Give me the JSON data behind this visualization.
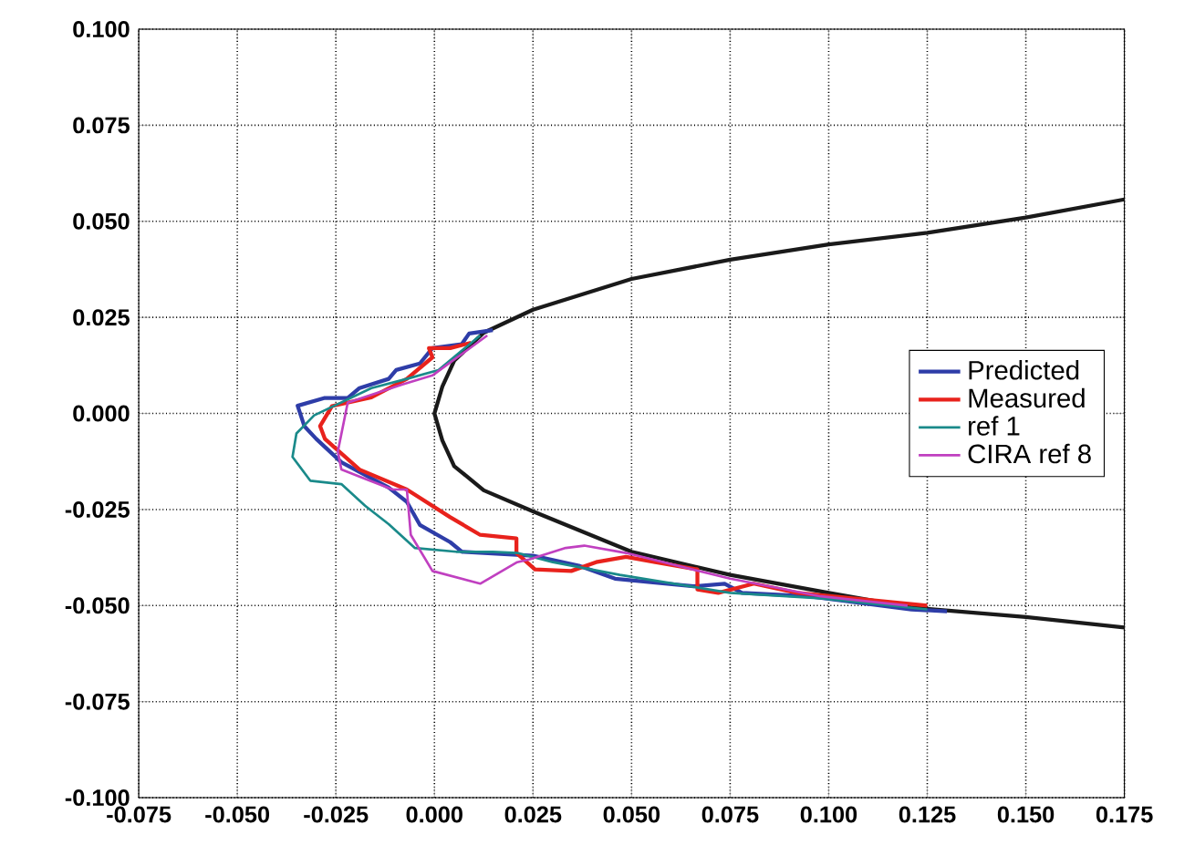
{
  "chart_data": {
    "type": "line",
    "xlim": [
      -0.075,
      0.175
    ],
    "ylim": [
      -0.1,
      0.1
    ],
    "xticks": [
      {
        "value": -0.075,
        "label": "-0.075"
      },
      {
        "value": -0.05,
        "label": "-0.050"
      },
      {
        "value": -0.025,
        "label": "-0.025"
      },
      {
        "value": 0,
        "label": "0.000"
      },
      {
        "value": 0.025,
        "label": "0.025"
      },
      {
        "value": 0.05,
        "label": "0.050"
      },
      {
        "value": 0.075,
        "label": "0.075"
      },
      {
        "value": 0.1,
        "label": "0.100"
      },
      {
        "value": 0.125,
        "label": "0.125"
      },
      {
        "value": 0.15,
        "label": "0.150"
      },
      {
        "value": 0.175,
        "label": "0.175"
      }
    ],
    "yticks": [
      {
        "value": -0.1,
        "label": "-0.100"
      },
      {
        "value": -0.075,
        "label": "-0.075"
      },
      {
        "value": -0.05,
        "label": "-0.050"
      },
      {
        "value": -0.025,
        "label": "-0.025"
      },
      {
        "value": 0,
        "label": "0.000"
      },
      {
        "value": 0.025,
        "label": "0.025"
      },
      {
        "value": 0.05,
        "label": "0.050"
      },
      {
        "value": 0.075,
        "label": "0.075"
      },
      {
        "value": 0.1,
        "label": "0.100"
      }
    ],
    "grid": true,
    "legend": "right",
    "marker": "none",
    "line_style": "solid",
    "series": [
      {
        "color": "#1a1a1a",
        "x": [
          0.175,
          0.15,
          0.125,
          0.1,
          0.075,
          0.05,
          0.025,
          0.0125,
          0.005,
          0.002,
          0,
          0.002,
          0.005,
          0.0125,
          0.025,
          0.05,
          0.075,
          0.1,
          0.121,
          0.15,
          0.175
        ],
        "values": [
          0.0557,
          0.051,
          0.047,
          0.044,
          0.04,
          0.035,
          0.027,
          0.021,
          0.0137,
          0.007,
          0,
          -0.007,
          -0.0137,
          -0.02,
          -0.0255,
          -0.036,
          -0.042,
          -0.0467,
          -0.0505,
          -0.053,
          -0.0557
        ]
      },
      {
        "name": "Predicted",
        "color": "#2e3da8",
        "x": [
          0.0148,
          0.0088,
          0.0069,
          -0.0005,
          -0.0037,
          -0.0097,
          -0.0116,
          -0.019,
          -0.022,
          -0.028,
          -0.0347,
          -0.033,
          -0.03,
          -0.0236,
          -0.0176,
          -0.0116,
          -0.007,
          -0.0037,
          0.004,
          0.007,
          0.025,
          0.0366,
          0.0458,
          0.0657,
          0.0736,
          0.078,
          0.095,
          0.121,
          0.13
        ],
        "values": [
          0.0217,
          0.0208,
          0.018,
          0.017,
          0.013,
          0.0113,
          0.009,
          0.0066,
          0.004,
          0.004,
          0.002,
          -0.0033,
          -0.0066,
          -0.0127,
          -0.016,
          -0.0193,
          -0.023,
          -0.029,
          -0.0335,
          -0.036,
          -0.037,
          -0.0396,
          -0.043,
          -0.045,
          -0.0443,
          -0.0467,
          -0.0476,
          -0.051,
          -0.0515
        ]
      },
      {
        "name": "Measured",
        "color": "#e8221c",
        "x": [
          0.0093,
          0.004,
          -0.0014,
          -0.0005,
          -0.007,
          -0.016,
          -0.026,
          -0.029,
          -0.0278,
          -0.019,
          -0.007,
          0.004,
          0.0116,
          0.0208,
          0.0208,
          0.0255,
          0.0347,
          0.041,
          0.0486,
          0.056,
          0.0667,
          0.0667,
          0.072,
          0.081,
          0.092,
          0.125
        ],
        "values": [
          0.0184,
          0.017,
          0.017,
          0.0146,
          0.009,
          0.0042,
          0.0019,
          -0.0033,
          -0.0066,
          -0.0146,
          -0.0198,
          -0.027,
          -0.0316,
          -0.0325,
          -0.0363,
          -0.0406,
          -0.041,
          -0.0387,
          -0.0373,
          -0.0387,
          -0.0406,
          -0.0458,
          -0.0467,
          -0.0443,
          -0.0467,
          -0.05
        ]
      },
      {
        "name": "ref 1",
        "color": "#1a8a8a",
        "x": [
          0.0116,
          0.001,
          -0.007,
          -0.016,
          -0.0305,
          -0.035,
          -0.036,
          -0.0315,
          -0.0236,
          -0.0176,
          -0.0116,
          -0.005,
          0.0055,
          0.0148,
          0.021,
          0.03,
          0.047,
          0.075,
          0.098,
          0.125
        ],
        "values": [
          0.0203,
          0.0113,
          0.009,
          0.0066,
          -0.0005,
          -0.0052,
          -0.0113,
          -0.0175,
          -0.0184,
          -0.024,
          -0.0288,
          -0.035,
          -0.036,
          -0.036,
          -0.0363,
          -0.0387,
          -0.042,
          -0.0467,
          -0.0481,
          -0.051
        ]
      },
      {
        "name": "CIRA ref 8",
        "color": "#c040c0",
        "x": [
          0.0134,
          -0.0005,
          -0.0083,
          -0.022,
          -0.0245,
          -0.0236,
          -0.0176,
          -0.0106,
          -0.007,
          -0.006,
          -0.0005,
          0.0116,
          0.021,
          0.024,
          0.0333,
          0.038,
          0.0486,
          0.075,
          0.098,
          0.12
        ],
        "values": [
          0.0203,
          0.0099,
          0.0075,
          0.0028,
          -0.0099,
          -0.0146,
          -0.017,
          -0.0198,
          -0.0198,
          -0.0316,
          -0.041,
          -0.0443,
          -0.0387,
          -0.038,
          -0.035,
          -0.0344,
          -0.0363,
          -0.043,
          -0.0476,
          -0.05
        ]
      }
    ]
  }
}
